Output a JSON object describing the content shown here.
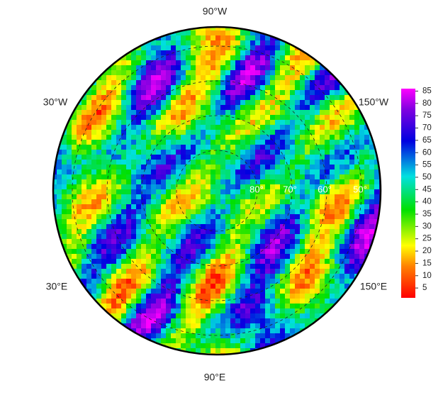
{
  "map": {
    "longitude_labels": {
      "top": "90°W",
      "upper_left": "30°W",
      "upper_right": "150°W",
      "lower_left": "30°E",
      "lower_right": "150°E",
      "bottom": "90°E"
    },
    "latitude_labels": [
      "80°",
      "70°",
      "60°",
      "50°"
    ]
  },
  "colorbar": {
    "lim": [
      1,
      86
    ],
    "ticks": [
      5,
      10,
      15,
      20,
      25,
      30,
      35,
      40,
      45,
      50,
      55,
      60,
      65,
      70,
      75,
      80,
      85
    ]
  }
}
